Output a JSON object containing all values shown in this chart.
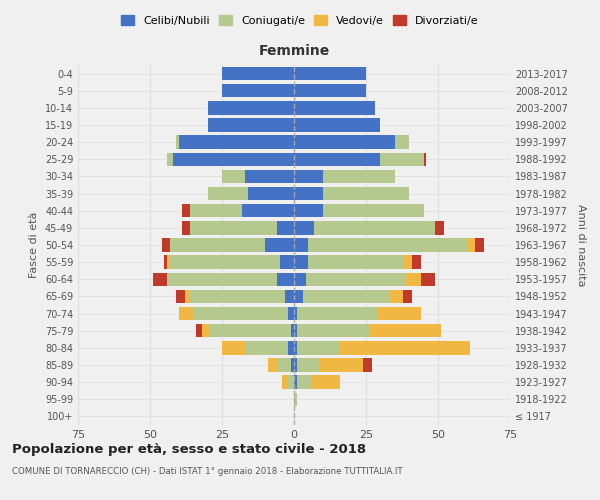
{
  "age_groups": [
    "100+",
    "95-99",
    "90-94",
    "85-89",
    "80-84",
    "75-79",
    "70-74",
    "65-69",
    "60-64",
    "55-59",
    "50-54",
    "45-49",
    "40-44",
    "35-39",
    "30-34",
    "25-29",
    "20-24",
    "15-19",
    "10-14",
    "5-9",
    "0-4"
  ],
  "birth_years": [
    "≤ 1917",
    "1918-1922",
    "1923-1927",
    "1928-1932",
    "1933-1937",
    "1938-1942",
    "1943-1947",
    "1948-1952",
    "1953-1957",
    "1958-1962",
    "1963-1967",
    "1968-1972",
    "1973-1977",
    "1978-1982",
    "1983-1987",
    "1988-1992",
    "1993-1997",
    "1998-2002",
    "2003-2007",
    "2008-2012",
    "2013-2017"
  ],
  "male": {
    "celibi": [
      0,
      0,
      0,
      1,
      2,
      1,
      2,
      3,
      6,
      5,
      10,
      6,
      18,
      16,
      17,
      42,
      40,
      30,
      30,
      25,
      25
    ],
    "coniugati": [
      0,
      0,
      2,
      5,
      15,
      28,
      33,
      33,
      38,
      38,
      33,
      30,
      18,
      14,
      8,
      2,
      1,
      0,
      0,
      0,
      0
    ],
    "vedovi": [
      0,
      0,
      2,
      3,
      8,
      3,
      5,
      2,
      0,
      1,
      0,
      0,
      0,
      0,
      0,
      0,
      0,
      0,
      0,
      0,
      0
    ],
    "divorziati": [
      0,
      0,
      0,
      0,
      0,
      2,
      0,
      3,
      5,
      1,
      3,
      3,
      3,
      0,
      0,
      0,
      0,
      0,
      0,
      0,
      0
    ]
  },
  "female": {
    "nubili": [
      0,
      0,
      1,
      1,
      1,
      1,
      1,
      3,
      4,
      5,
      5,
      7,
      10,
      10,
      10,
      30,
      35,
      30,
      28,
      25,
      25
    ],
    "coniugate": [
      0,
      1,
      5,
      8,
      15,
      25,
      28,
      30,
      35,
      33,
      55,
      42,
      35,
      30,
      25,
      15,
      5,
      0,
      0,
      0,
      0
    ],
    "vedove": [
      0,
      0,
      10,
      15,
      45,
      25,
      15,
      5,
      5,
      3,
      3,
      0,
      0,
      0,
      0,
      0,
      0,
      0,
      0,
      0,
      0
    ],
    "divorziate": [
      0,
      0,
      0,
      3,
      0,
      0,
      0,
      3,
      5,
      3,
      3,
      3,
      0,
      0,
      0,
      1,
      0,
      0,
      0,
      0,
      0
    ]
  },
  "color_celibi": "#4472c4",
  "color_coniugati": "#b5c98e",
  "color_vedovi": "#f0b842",
  "color_divorziati": "#c0392b",
  "bg_color": "#f0f0f0",
  "grid_color": "#dddddd",
  "title": "Popolazione per età, sesso e stato civile - 2018",
  "subtitle": "COMUNE DI TORNARECCIO (CH) - Dati ISTAT 1° gennaio 2018 - Elaborazione TUTTITALIA.IT",
  "xlabel_right": "Femmine",
  "ylabel_left": "Fasce di età",
  "ylabel_right": "Anni di nascita",
  "xlim": 75
}
